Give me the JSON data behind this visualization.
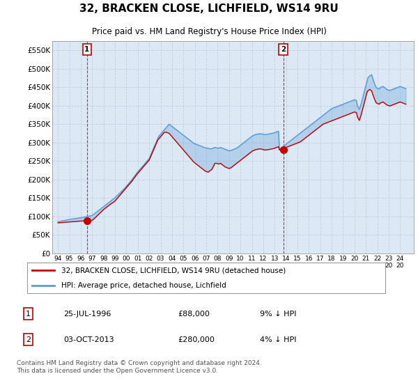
{
  "title": "32, BRACKEN CLOSE, LICHFIELD, WS14 9RU",
  "subtitle": "Price paid vs. HM Land Registry's House Price Index (HPI)",
  "ylim": [
    0,
    575000
  ],
  "yticks": [
    0,
    50000,
    100000,
    150000,
    200000,
    250000,
    300000,
    350000,
    400000,
    450000,
    500000,
    550000
  ],
  "ytick_labels": [
    "£0",
    "£50K",
    "£100K",
    "£150K",
    "£200K",
    "£250K",
    "£300K",
    "£350K",
    "£400K",
    "£450K",
    "£500K",
    "£550K"
  ],
  "xmin": 1993.5,
  "xmax": 2025.2,
  "xtick_years": [
    1994,
    1995,
    1996,
    1997,
    1998,
    1999,
    2000,
    2001,
    2002,
    2003,
    2004,
    2005,
    2006,
    2007,
    2008,
    2009,
    2010,
    2011,
    2012,
    2013,
    2014,
    2015,
    2016,
    2017,
    2018,
    2019,
    2020,
    2021,
    2022,
    2023,
    2024
  ],
  "hpi_color": "#5b9bd5",
  "price_color": "#c00000",
  "marker_color": "#c00000",
  "background_color": "#ffffff",
  "grid_color": "#c0d0e0",
  "plot_bg_color": "#dce8f4",
  "legend_label_red": "32, BRACKEN CLOSE, LICHFIELD, WS14 9RU (detached house)",
  "legend_label_blue": "HPI: Average price, detached house, Lichfield",
  "sale1_label": "1",
  "sale1_date": "25-JUL-1996",
  "sale1_price": "£88,000",
  "sale1_note": "9% ↓ HPI",
  "sale1_year": 1996.55,
  "sale1_value": 88000,
  "sale2_label": "2",
  "sale2_date": "03-OCT-2013",
  "sale2_price": "£280,000",
  "sale2_note": "4% ↓ HPI",
  "sale2_year": 2013.75,
  "sale2_value": 280000,
  "footnote": "Contains HM Land Registry data © Crown copyright and database right 2024.\nThis data is licensed under the Open Government Licence v3.0.",
  "hpi_x": [
    1994.0,
    1994.083,
    1994.167,
    1994.25,
    1994.333,
    1994.417,
    1994.5,
    1994.583,
    1994.667,
    1994.75,
    1994.833,
    1994.917,
    1995.0,
    1995.083,
    1995.167,
    1995.25,
    1995.333,
    1995.417,
    1995.5,
    1995.583,
    1995.667,
    1995.75,
    1995.833,
    1995.917,
    1996.0,
    1996.083,
    1996.167,
    1996.25,
    1996.333,
    1996.417,
    1996.5,
    1996.583,
    1996.667,
    1996.75,
    1996.833,
    1996.917,
    1997.0,
    1997.083,
    1997.167,
    1997.25,
    1997.333,
    1997.417,
    1997.5,
    1997.583,
    1997.667,
    1997.75,
    1997.833,
    1997.917,
    1998.0,
    1998.083,
    1998.167,
    1998.25,
    1998.333,
    1998.417,
    1998.5,
    1998.583,
    1998.667,
    1998.75,
    1998.833,
    1998.917,
    1999.0,
    1999.083,
    1999.167,
    1999.25,
    1999.333,
    1999.417,
    1999.5,
    1999.583,
    1999.667,
    1999.75,
    1999.833,
    1999.917,
    2000.0,
    2000.083,
    2000.167,
    2000.25,
    2000.333,
    2000.417,
    2000.5,
    2000.583,
    2000.667,
    2000.75,
    2000.833,
    2000.917,
    2001.0,
    2001.083,
    2001.167,
    2001.25,
    2001.333,
    2001.417,
    2001.5,
    2001.583,
    2001.667,
    2001.75,
    2001.833,
    2001.917,
    2002.0,
    2002.083,
    2002.167,
    2002.25,
    2002.333,
    2002.417,
    2002.5,
    2002.583,
    2002.667,
    2002.75,
    2002.833,
    2002.917,
    2003.0,
    2003.083,
    2003.167,
    2003.25,
    2003.333,
    2003.417,
    2003.5,
    2003.583,
    2003.667,
    2003.75,
    2003.833,
    2003.917,
    2004.0,
    2004.083,
    2004.167,
    2004.25,
    2004.333,
    2004.417,
    2004.5,
    2004.583,
    2004.667,
    2004.75,
    2004.833,
    2004.917,
    2005.0,
    2005.083,
    2005.167,
    2005.25,
    2005.333,
    2005.417,
    2005.5,
    2005.583,
    2005.667,
    2005.75,
    2005.833,
    2005.917,
    2006.0,
    2006.083,
    2006.167,
    2006.25,
    2006.333,
    2006.417,
    2006.5,
    2006.583,
    2006.667,
    2006.75,
    2006.833,
    2006.917,
    2007.0,
    2007.083,
    2007.167,
    2007.25,
    2007.333,
    2007.417,
    2007.5,
    2007.583,
    2007.667,
    2007.75,
    2007.833,
    2007.917,
    2008.0,
    2008.083,
    2008.167,
    2008.25,
    2008.333,
    2008.417,
    2008.5,
    2008.583,
    2008.667,
    2008.75,
    2008.833,
    2008.917,
    2009.0,
    2009.083,
    2009.167,
    2009.25,
    2009.333,
    2009.417,
    2009.5,
    2009.583,
    2009.667,
    2009.75,
    2009.833,
    2009.917,
    2010.0,
    2010.083,
    2010.167,
    2010.25,
    2010.333,
    2010.417,
    2010.5,
    2010.583,
    2010.667,
    2010.75,
    2010.833,
    2010.917,
    2011.0,
    2011.083,
    2011.167,
    2011.25,
    2011.333,
    2011.417,
    2011.5,
    2011.583,
    2011.667,
    2011.75,
    2011.833,
    2011.917,
    2012.0,
    2012.083,
    2012.167,
    2012.25,
    2012.333,
    2012.417,
    2012.5,
    2012.583,
    2012.667,
    2012.75,
    2012.833,
    2012.917,
    2013.0,
    2013.083,
    2013.167,
    2013.25,
    2013.333,
    2013.417,
    2013.5,
    2013.583,
    2013.667,
    2013.75,
    2013.833,
    2013.917,
    2014.0,
    2014.083,
    2014.167,
    2014.25,
    2014.333,
    2014.417,
    2014.5,
    2014.583,
    2014.667,
    2014.75,
    2014.833,
    2014.917,
    2015.0,
    2015.083,
    2015.167,
    2015.25,
    2015.333,
    2015.417,
    2015.5,
    2015.583,
    2015.667,
    2015.75,
    2015.833,
    2015.917,
    2016.0,
    2016.083,
    2016.167,
    2016.25,
    2016.333,
    2016.417,
    2016.5,
    2016.583,
    2016.667,
    2016.75,
    2016.833,
    2016.917,
    2017.0,
    2017.083,
    2017.167,
    2017.25,
    2017.333,
    2017.417,
    2017.5,
    2017.583,
    2017.667,
    2017.75,
    2017.833,
    2017.917,
    2018.0,
    2018.083,
    2018.167,
    2018.25,
    2018.333,
    2018.417,
    2018.5,
    2018.583,
    2018.667,
    2018.75,
    2018.833,
    2018.917,
    2019.0,
    2019.083,
    2019.167,
    2019.25,
    2019.333,
    2019.417,
    2019.5,
    2019.583,
    2019.667,
    2019.75,
    2019.833,
    2019.917,
    2020.0,
    2020.083,
    2020.167,
    2020.25,
    2020.333,
    2020.417,
    2020.5,
    2020.583,
    2020.667,
    2020.75,
    2020.833,
    2020.917,
    2021.0,
    2021.083,
    2021.167,
    2021.25,
    2021.333,
    2021.417,
    2021.5,
    2021.583,
    2021.667,
    2021.75,
    2021.833,
    2021.917,
    2022.0,
    2022.083,
    2022.167,
    2022.25,
    2022.333,
    2022.417,
    2022.5,
    2022.583,
    2022.667,
    2022.75,
    2022.833,
    2022.917,
    2023.0,
    2023.083,
    2023.167,
    2023.25,
    2023.333,
    2023.417,
    2023.5,
    2023.583,
    2023.667,
    2023.75,
    2023.833,
    2023.917,
    2024.0,
    2024.083,
    2024.167,
    2024.25,
    2024.333,
    2024.417,
    2024.5
  ],
  "hpi_y": [
    87000,
    86500,
    87000,
    87500,
    88000,
    88500,
    89000,
    89500,
    90000,
    90500,
    91000,
    91500,
    92000,
    92500,
    93000,
    93500,
    94000,
    94200,
    94500,
    94800,
    95000,
    95500,
    96000,
    96500,
    97000,
    97500,
    98000,
    98500,
    99000,
    99500,
    100000,
    100500,
    101000,
    101500,
    102000,
    102500,
    103500,
    105000,
    107000,
    109000,
    111000,
    113000,
    115000,
    117000,
    119000,
    121000,
    123000,
    125000,
    127000,
    129000,
    131000,
    133000,
    135000,
    137000,
    139000,
    141000,
    143000,
    145000,
    147000,
    149000,
    151000,
    153500,
    156000,
    158500,
    161000,
    163500,
    166000,
    168500,
    171000,
    173500,
    176000,
    179000,
    182000,
    185000,
    188000,
    191000,
    194000,
    197000,
    200500,
    204000,
    207500,
    211000,
    214500,
    218000,
    221000,
    224000,
    227000,
    230000,
    233000,
    236000,
    239000,
    242000,
    245000,
    248000,
    251000,
    254000,
    257000,
    263000,
    269000,
    275000,
    281000,
    287000,
    293000,
    299000,
    305000,
    311000,
    317000,
    320000,
    323000,
    326000,
    329000,
    332000,
    335000,
    338000,
    341000,
    344000,
    347000,
    350000,
    348000,
    346000,
    344000,
    342000,
    340000,
    338000,
    336000,
    334000,
    332000,
    330000,
    328000,
    326000,
    324000,
    322000,
    320000,
    318000,
    316000,
    314000,
    312000,
    310000,
    308000,
    306000,
    304000,
    302000,
    300000,
    298000,
    297000,
    296000,
    295000,
    294000,
    293000,
    292000,
    291000,
    290000,
    289000,
    288000,
    287000,
    286000,
    285500,
    285000,
    284500,
    284000,
    283500,
    283000,
    284000,
    285000,
    286000,
    287000,
    286500,
    286000,
    285500,
    285000,
    286000,
    287000,
    286000,
    285000,
    284000,
    283000,
    282000,
    281000,
    280000,
    279000,
    278000,
    278500,
    279000,
    280000,
    281000,
    282000,
    283000,
    284000,
    285500,
    287000,
    289000,
    291000,
    293000,
    295000,
    297000,
    299000,
    301000,
    303000,
    305000,
    307000,
    309000,
    311000,
    313000,
    315000,
    317000,
    319000,
    320000,
    321000,
    322000,
    322500,
    323000,
    323500,
    324000,
    324000,
    323500,
    323000,
    322500,
    322000,
    322000,
    322000,
    322500,
    323000,
    323500,
    324000,
    324500,
    325000,
    325500,
    326000,
    327000,
    328000,
    329000,
    330000,
    331000,
    282000,
    284000,
    286000,
    288000,
    290000,
    292000,
    294000,
    296000,
    298000,
    300000,
    302000,
    304000,
    306000,
    308000,
    310000,
    312000,
    314000,
    316000,
    318000,
    320000,
    322000,
    324000,
    326000,
    328000,
    330000,
    332000,
    334000,
    336000,
    338000,
    340000,
    342000,
    344000,
    346000,
    348000,
    350000,
    352000,
    354000,
    356000,
    358000,
    360000,
    362000,
    364000,
    366000,
    368000,
    370000,
    372000,
    374000,
    376000,
    378000,
    380000,
    382000,
    384000,
    386000,
    388000,
    390000,
    392000,
    393000,
    394000,
    395000,
    396000,
    397000,
    398000,
    399000,
    400000,
    401000,
    402000,
    403000,
    404000,
    405000,
    406000,
    407000,
    408000,
    409000,
    410000,
    411000,
    412000,
    413000,
    414000,
    415000,
    416000,
    415000,
    414000,
    400000,
    395000,
    390000,
    398000,
    405000,
    415000,
    425000,
    435000,
    445000,
    455000,
    465000,
    475000,
    478000,
    480000,
    482000,
    484000,
    475000,
    467000,
    460000,
    453000,
    448000,
    447000,
    446000,
    445000,
    449000,
    450000,
    451000,
    452000,
    450000,
    448000,
    446000,
    444000,
    443000,
    442000,
    441000,
    442000,
    443000,
    444000,
    445000,
    446000,
    447000,
    448000,
    449000,
    450000,
    451000,
    452000,
    451000,
    450000,
    449000,
    448000,
    447000,
    446000,
    445000,
    444000,
    443000,
    443500,
    444000,
    445000,
    446000,
    447000,
    448000,
    449000,
    450000,
    451000
  ],
  "price_y": [
    83000,
    83200,
    83400,
    83600,
    83800,
    84000,
    84200,
    84400,
    84600,
    84800,
    85000,
    85200,
    85400,
    85600,
    85800,
    86000,
    86200,
    86400,
    86600,
    86800,
    87000,
    87200,
    87400,
    87600,
    87800,
    88000,
    88200,
    88200,
    88200,
    88200,
    88200,
    88200,
    88200,
    88500,
    89000,
    89500,
    90000,
    92000,
    94000,
    96500,
    99000,
    101500,
    104000,
    106500,
    109000,
    111500,
    114000,
    116500,
    119000,
    121000,
    123000,
    125000,
    127000,
    129000,
    131000,
    133000,
    135000,
    136500,
    138000,
    140000,
    142000,
    145000,
    148000,
    151000,
    154000,
    157000,
    160000,
    163000,
    166000,
    169000,
    172000,
    175000,
    178000,
    181000,
    184000,
    187000,
    190000,
    193000,
    196500,
    200000,
    203500,
    207000,
    210500,
    214000,
    217000,
    220000,
    223000,
    226000,
    229000,
    232000,
    235000,
    238000,
    241000,
    244000,
    247000,
    250000,
    253000,
    259000,
    265000,
    271000,
    277000,
    283000,
    289000,
    295000,
    301000,
    307000,
    310000,
    313000,
    316000,
    319000,
    322000,
    325000,
    328000,
    328000,
    328000,
    327000,
    326000,
    325000,
    322000,
    319000,
    316000,
    313000,
    310000,
    307000,
    304000,
    301000,
    298000,
    295000,
    292000,
    289000,
    286000,
    283000,
    280000,
    277000,
    274000,
    271000,
    268000,
    265000,
    262000,
    259000,
    256000,
    253000,
    250000,
    247000,
    245000,
    243000,
    241000,
    239000,
    237000,
    235000,
    233000,
    231000,
    229000,
    227000,
    225000,
    223000,
    222000,
    221000,
    220000,
    222000,
    224000,
    226000,
    228000,
    233000,
    238000,
    244000,
    244000,
    244000,
    243000,
    242000,
    243000,
    244000,
    242000,
    240000,
    238000,
    236000,
    234000,
    233000,
    232000,
    231000,
    230000,
    231000,
    232000,
    234000,
    236000,
    238000,
    240000,
    242000,
    244000,
    246000,
    248000,
    250000,
    252000,
    254000,
    256000,
    258000,
    260000,
    262000,
    264000,
    266000,
    268000,
    270000,
    272000,
    274000,
    276000,
    278000,
    279000,
    280000,
    281000,
    281500,
    282000,
    282500,
    283000,
    283000,
    282500,
    282000,
    281000,
    280500,
    280000,
    280000,
    280500,
    281000,
    281500,
    282000,
    282500,
    283000,
    283500,
    284000,
    285000,
    286000,
    287000,
    288000,
    289000,
    280000,
    281000,
    282000,
    283000,
    284000,
    285000,
    286000,
    287000,
    288000,
    289000,
    290000,
    291000,
    292000,
    293000,
    294000,
    295000,
    296000,
    297000,
    298000,
    299000,
    300000,
    301000,
    302000,
    304000,
    306000,
    308000,
    310000,
    312000,
    314000,
    316000,
    318000,
    320000,
    322000,
    324000,
    326000,
    328000,
    330000,
    332000,
    334000,
    336000,
    338000,
    340000,
    342000,
    344000,
    346000,
    348000,
    350000,
    351000,
    352000,
    353000,
    354000,
    355000,
    356000,
    357000,
    358000,
    359000,
    360000,
    361000,
    362000,
    363000,
    364000,
    365000,
    366000,
    367000,
    368000,
    369000,
    370000,
    371000,
    372000,
    373000,
    374000,
    375000,
    376000,
    377000,
    378000,
    379000,
    380000,
    381000,
    382000,
    383000,
    382000,
    381000,
    370000,
    365000,
    360000,
    368000,
    375000,
    385000,
    395000,
    405000,
    415000,
    425000,
    435000,
    440000,
    442000,
    444000,
    442000,
    440000,
    432000,
    425000,
    418000,
    412000,
    407000,
    406000,
    405000,
    404000,
    407000,
    408000,
    409000,
    410000,
    408000,
    406000,
    404000,
    402000,
    401000,
    400000,
    399000,
    400000,
    401000,
    402000,
    403000,
    404000,
    405000,
    406000,
    407000,
    408000,
    409000,
    410000,
    409000,
    408000,
    407000,
    406000,
    405000,
    404000,
    403000,
    402000,
    401000,
    401500,
    402000,
    403000,
    404000,
    405000,
    406000,
    407000,
    408000,
    409000
  ]
}
